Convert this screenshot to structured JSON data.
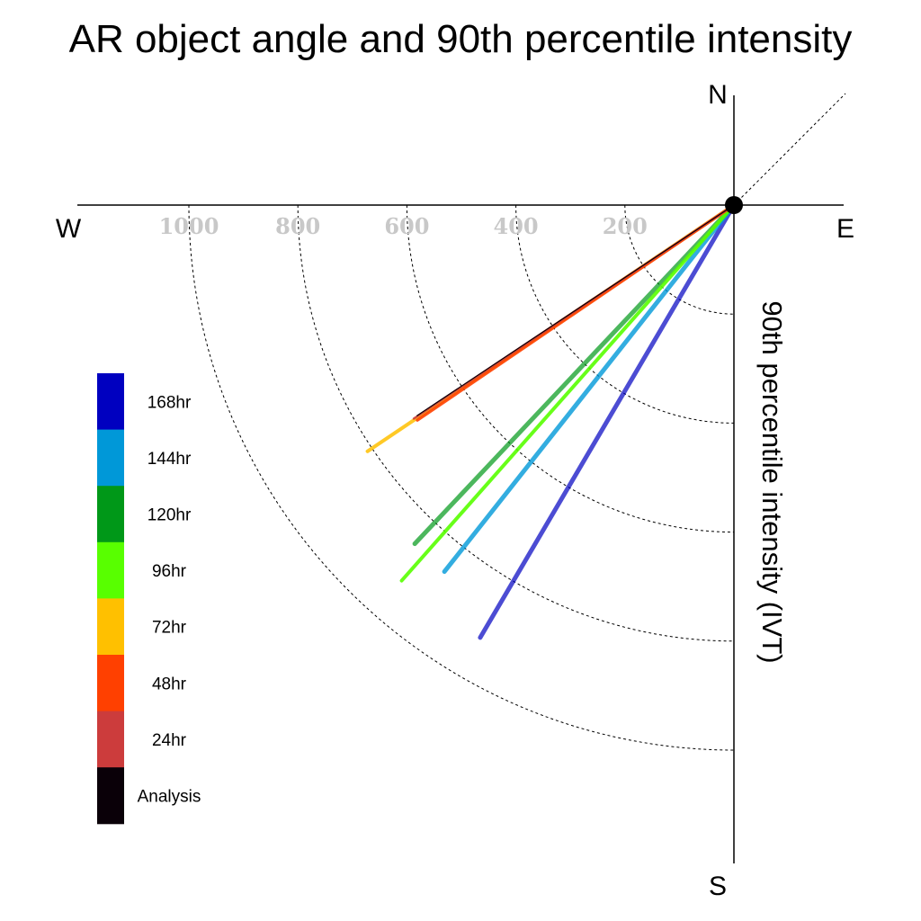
{
  "chart_data": {
    "type": "polar-line",
    "title": "AR object angle and 90th percentile intensity",
    "radial_label": "90th percentile intensity (IVT)",
    "compass": {
      "north": "N",
      "south": "S",
      "east": "E",
      "west": "W"
    },
    "radial_ticks": [
      200,
      400,
      600,
      800,
      1000
    ],
    "radial_tick_labels": [
      "200",
      "400",
      "600",
      "800",
      "1000"
    ],
    "radial_max": 1000,
    "grid": true,
    "legend_placement": "left",
    "series": [
      {
        "name": "168hr",
        "color": "#0000c0",
        "angle_deg": 210.4,
        "intensity": 920
      },
      {
        "name": "144hr",
        "color": "#0098d8",
        "angle_deg": 218.3,
        "intensity": 857
      },
      {
        "name": "120hr",
        "color": "#009818",
        "angle_deg": 223.3,
        "intensity": 854
      },
      {
        "name": "96hr",
        "color": "#58ff00",
        "angle_deg": 221.5,
        "intensity": 920
      },
      {
        "name": "72hr",
        "color": "#ffc000",
        "angle_deg": 236.1,
        "intensity": 810
      },
      {
        "name": "48hr",
        "color": "#ff4000",
        "angle_deg": 235.8,
        "intensity": 702
      },
      {
        "name": "24hr",
        "color": "#cc3c3c",
        "angle_deg": 236.3,
        "intensity": 706
      },
      {
        "name": "Analysis",
        "color": "#0a0008",
        "angle_deg": 236.4,
        "intensity": 698
      }
    ]
  }
}
